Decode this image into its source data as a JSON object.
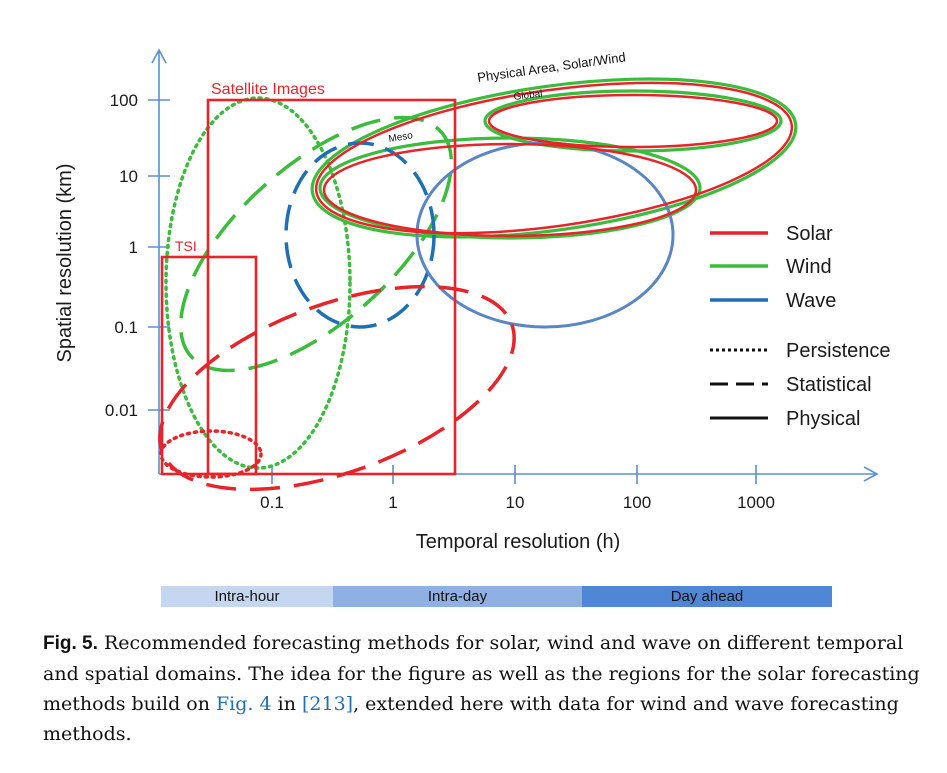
{
  "axes": {
    "ylabel": "Spatial resolution (km)",
    "xlabel": "Temporal resolution (h)",
    "yticks": [
      "100",
      "10",
      "1",
      "0.1",
      "0.01"
    ],
    "xticks": [
      "0.1",
      "1",
      "10",
      "100",
      "1000"
    ]
  },
  "regions": {
    "satellite": "Satellite Images",
    "tsi": "TSI",
    "physical_area": "Physical Area, Solar/Wind",
    "global": "Global",
    "meso": "Meso"
  },
  "legend": {
    "colors": [
      {
        "label": "Solar",
        "color": "#e8242a"
      },
      {
        "label": "Wind",
        "color": "#3cbc3c"
      },
      {
        "label": "Wave",
        "color": "#1f6fb5"
      }
    ],
    "styles": [
      {
        "label": "Persistence",
        "dash": "dotted"
      },
      {
        "label": "Statistical",
        "dash": "dashed"
      },
      {
        "label": "Physical",
        "dash": "solid"
      }
    ]
  },
  "horizons": [
    {
      "label": "Intra-hour",
      "color": "#c5d7f0"
    },
    {
      "label": "Intra-day",
      "color": "#8eb0e3"
    },
    {
      "label": "Day ahead",
      "color": "#4f86d6"
    }
  ],
  "caption": {
    "fig": "Fig. 5.",
    "text1": " Recommended forecasting methods for solar, wind and wave on different temporal and spatial domains. The idea for the figure as well as the regions for the solar forecasting methods build on ",
    "link1": "Fig. 4",
    "text2": " in ",
    "link2": "[213]",
    "text3": ", extended here with data for wind and wave forecasting methods."
  }
}
